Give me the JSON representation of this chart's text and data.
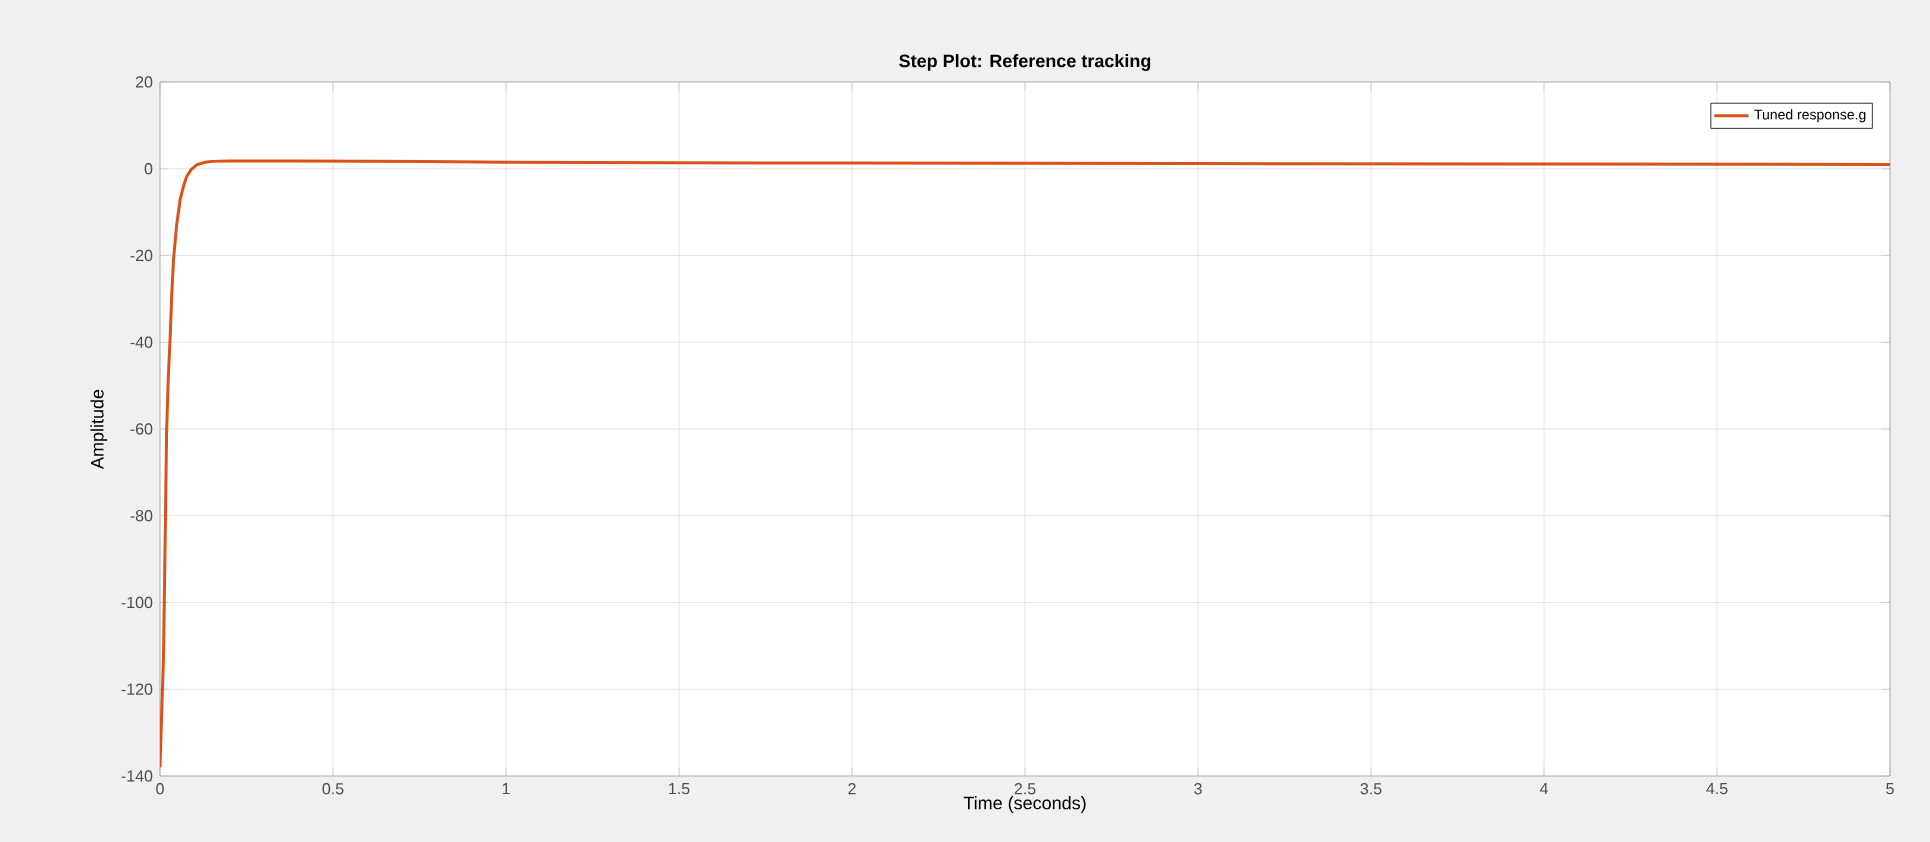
{
  "chart_data": {
    "type": "line",
    "title": "Step Plot: Reference tracking",
    "xlabel": "Time (seconds)",
    "ylabel": "Amplitude",
    "xlim": [
      0,
      5
    ],
    "ylim": [
      -140,
      20
    ],
    "xticks": [
      0,
      0.5,
      1,
      1.5,
      2,
      2.5,
      3,
      3.5,
      4,
      4.5,
      5
    ],
    "yticks": [
      -140,
      -120,
      -100,
      -80,
      -60,
      -40,
      -20,
      0,
      20
    ],
    "grid": true,
    "legend": "top right",
    "marker": "none",
    "line_style": "solid",
    "series": [
      {
        "name": "Tuned response.g",
        "color": "#d95319",
        "x": [
          0,
          0.005,
          0.01,
          0.015,
          0.019,
          0.024,
          0.029,
          0.034,
          0.039,
          0.048,
          0.058,
          0.068,
          0.077,
          0.09,
          0.106,
          0.13,
          0.15,
          0.2,
          0.4,
          0.77,
          1,
          1.5,
          2,
          3,
          4,
          5
        ],
        "values": [
          -138,
          -125,
          -113,
          -85,
          -61,
          -48,
          -39.5,
          -29,
          -21,
          -13,
          -7.2,
          -4,
          -1.8,
          -0.2,
          0.9,
          1.5,
          1.7,
          1.8,
          1.8,
          1.7,
          1.5,
          1.4,
          1.3,
          1.2,
          1.1,
          1
        ]
      }
    ]
  }
}
